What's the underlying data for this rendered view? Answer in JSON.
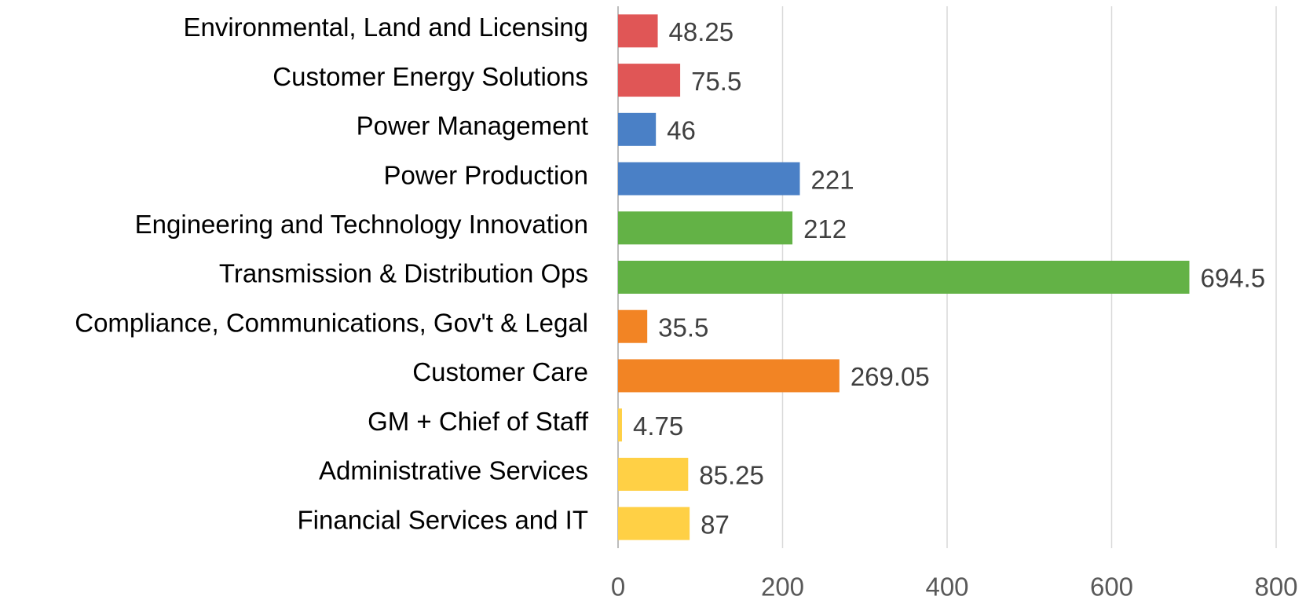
{
  "chart_data": {
    "type": "barh",
    "categories": [
      "Environmental, Land and Licensing",
      "Customer Energy Solutions",
      "Power Management",
      "Power Production",
      "Engineering and Technology Innovation",
      "Transmission & Distribution Ops",
      "Compliance, Communications, Gov't & Legal",
      "Customer Care",
      "GM + Chief of Staff",
      "Administrative Services",
      "Financial Services and IT"
    ],
    "values": [
      48.25,
      75.5,
      46,
      221,
      212,
      694.5,
      35.5,
      269.05,
      4.75,
      85.25,
      87
    ],
    "colors": [
      "#e05656",
      "#e05656",
      "#4a80c6",
      "#4a80c6",
      "#63b246",
      "#63b246",
      "#f28424",
      "#f28424",
      "#ffd045",
      "#ffd045",
      "#ffd045"
    ],
    "xlim": [
      0,
      800
    ],
    "xticks": [
      0,
      200,
      400,
      600,
      800
    ],
    "grid": true
  }
}
